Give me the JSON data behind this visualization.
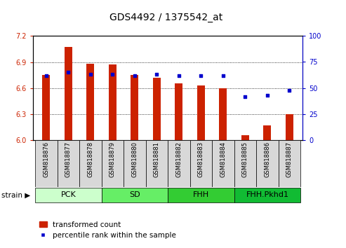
{
  "title": "GDS4492 / 1375542_at",
  "samples": [
    "GSM818876",
    "GSM818877",
    "GSM818878",
    "GSM818879",
    "GSM818880",
    "GSM818881",
    "GSM818882",
    "GSM818883",
    "GSM818884",
    "GSM818885",
    "GSM818886",
    "GSM818887"
  ],
  "transformed_counts": [
    6.75,
    7.07,
    6.88,
    6.87,
    6.75,
    6.72,
    6.65,
    6.63,
    6.6,
    6.06,
    6.17,
    6.3
  ],
  "percentile_ranks": [
    62,
    65,
    63,
    63,
    62,
    63,
    62,
    62,
    62,
    42,
    43,
    48
  ],
  "ylim_left": [
    6.0,
    7.2
  ],
  "ylim_right": [
    0,
    100
  ],
  "yticks_left": [
    6.0,
    6.3,
    6.6,
    6.9,
    7.2
  ],
  "yticks_right": [
    0,
    25,
    50,
    75,
    100
  ],
  "bar_color": "#cc2200",
  "dot_color": "#0000cc",
  "bar_bottom": 6.0,
  "groups": [
    {
      "label": "PCK",
      "start": 0,
      "end": 3,
      "color": "#ccffcc"
    },
    {
      "label": "SD",
      "start": 3,
      "end": 6,
      "color": "#66dd66"
    },
    {
      "label": "FHH",
      "start": 6,
      "end": 9,
      "color": "#22cc44"
    },
    {
      "label": "FHH.Pkhd1",
      "start": 9,
      "end": 12,
      "color": "#22bb33"
    }
  ],
  "legend_bar_label": "transformed count",
  "legend_dot_label": "percentile rank within the sample",
  "title_fontsize": 10,
  "tick_fontsize": 7,
  "label_fontsize": 8,
  "group_label_fontsize": 8,
  "xtick_fontsize": 6,
  "bar_width": 0.35
}
